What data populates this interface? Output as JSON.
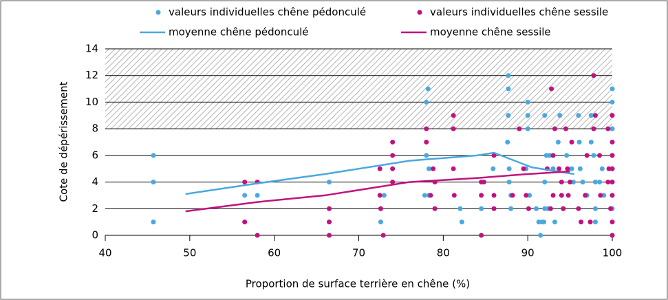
{
  "chart_data": {
    "type": "scatter",
    "x_label": "Proportion de surface terrière en chêne (%)",
    "y_label": "Cote de dépérissement",
    "xlim": [
      40,
      100
    ],
    "xticks": [
      40,
      50,
      60,
      70,
      80,
      90,
      100
    ],
    "ylim": [
      0,
      14
    ],
    "yticks": [
      0,
      2,
      4,
      6,
      8,
      10,
      12,
      14
    ],
    "grid": true,
    "hatched_range": [
      8,
      14
    ],
    "series": [
      {
        "name": "valeurs individuelles chêne pédonculé",
        "kind": "scatter",
        "color": "#4aa8e0",
        "x": [
          45.7,
          45.7,
          45.7,
          56.5,
          58,
          66.5,
          72.6,
          73,
          77.8,
          78,
          78.2,
          78,
          78.3,
          78.3,
          82,
          82.2,
          84.5,
          85.9,
          87.7,
          87.7,
          87.7,
          87.6,
          87.8,
          87.8,
          88,
          88,
          90,
          90,
          90,
          89.8,
          90.2,
          91,
          91.3,
          91.5,
          91.7,
          91.9,
          92,
          92,
          92.2,
          92,
          92.4,
          92.6,
          93,
          93,
          93.2,
          93.6,
          93.8,
          94,
          94.2,
          94.6,
          95.2,
          95.4,
          96,
          96.2,
          96.5,
          96.1,
          97.5,
          97.5,
          97.8,
          98,
          98,
          98,
          98.5,
          99,
          100,
          100,
          100,
          100,
          100,
          100,
          100,
          100,
          100,
          98.8,
          97
        ],
        "values": [
          6,
          4,
          1,
          3,
          3,
          4,
          1,
          3,
          3,
          10,
          11,
          6,
          5,
          3,
          2,
          1,
          2,
          5,
          12,
          11,
          9,
          7,
          5,
          4,
          3,
          2,
          10,
          9,
          8,
          5,
          3,
          2,
          1,
          0,
          1,
          1,
          2,
          4,
          6,
          9,
          2,
          6,
          6,
          5,
          1,
          7,
          9,
          3,
          2,
          6,
          5,
          4,
          9,
          5,
          4,
          7,
          9,
          7,
          6,
          4,
          2,
          1,
          4,
          3,
          11,
          10,
          8,
          6,
          5,
          4,
          3,
          2,
          0,
          5,
          3
        ]
      },
      {
        "name": "valeurs individuelles chêne sessile",
        "kind": "scatter",
        "color": "#c0127f",
        "x": [
          56.5,
          56.5,
          58,
          58,
          66.5,
          66.5,
          66.5,
          72.5,
          72.5,
          72.6,
          72.9,
          74,
          74,
          74,
          74,
          78,
          78,
          78.5,
          78.8,
          79,
          79,
          81.2,
          81.2,
          81.2,
          81.3,
          84.5,
          84.5,
          84.5,
          84.8,
          86,
          86,
          86,
          88.2,
          89,
          89.5,
          89.8,
          90.1,
          92.3,
          92.7,
          92.8,
          93,
          93,
          93.2,
          93.7,
          94,
          94,
          94.2,
          94.5,
          94.7,
          94.8,
          95.2,
          95,
          96,
          96.3,
          96.8,
          97,
          97.4,
          97.8,
          97.8,
          98,
          98.5,
          98.6,
          99.5,
          99.5,
          99.8,
          100,
          100,
          100,
          100,
          100,
          100,
          100,
          100,
          99.6
        ],
        "values": [
          4,
          1,
          4,
          0,
          2,
          1,
          0,
          5,
          3,
          2,
          0,
          7,
          6,
          5,
          4,
          8,
          7,
          3,
          5,
          4,
          2,
          9,
          8,
          5,
          3,
          4,
          3,
          0,
          4,
          6,
          3,
          2,
          3,
          8,
          5,
          3,
          2,
          5,
          2,
          11,
          6,
          3,
          8,
          5,
          4,
          3,
          2,
          8,
          5,
          3,
          7,
          4,
          2,
          1,
          3,
          6,
          1,
          12,
          8,
          9,
          6,
          3,
          8,
          4,
          2,
          9,
          7,
          6,
          5,
          4,
          3,
          1,
          0,
          5
        ]
      },
      {
        "name": "moyenne chêne pédonculé",
        "kind": "line",
        "color": "#4aa8e0",
        "x": [
          49.5,
          58,
          66,
          76,
          84,
          86,
          90.5,
          95.5
        ],
        "values": [
          3.1,
          3.9,
          4.6,
          5.6,
          6.0,
          6.2,
          5.1,
          4.6
        ]
      },
      {
        "name": "moyenne chêne sessile",
        "kind": "line",
        "color": "#c0127f",
        "x": [
          49.5,
          58,
          66,
          76,
          84,
          90,
          95
        ],
        "values": [
          1.8,
          2.5,
          3.0,
          4.0,
          4.3,
          4.6,
          4.8
        ]
      }
    ]
  }
}
